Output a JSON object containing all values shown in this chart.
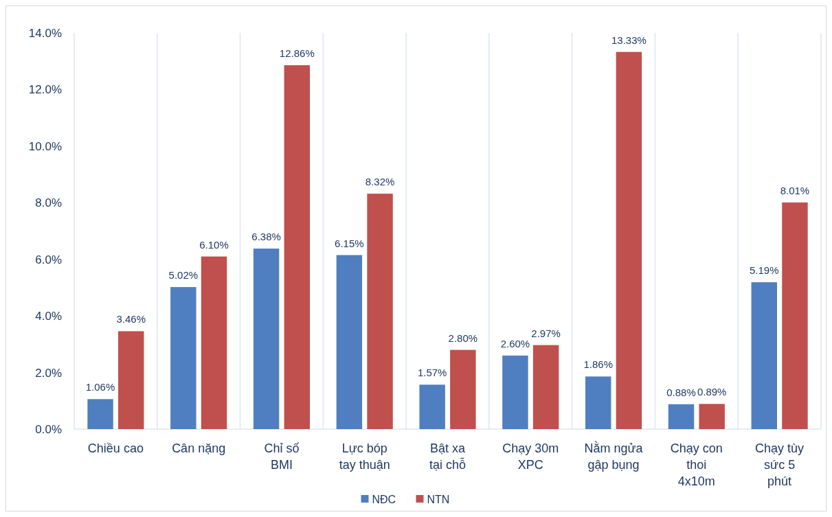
{
  "chart_data": {
    "type": "bar",
    "categories": [
      "Chiều cao",
      "Cân nặng",
      "Chỉ số BMI",
      "Lực bóp tay thuận",
      "Bật xa tại chỗ",
      "Chạy 30m XPC",
      "Nằm ngửa gập bụng",
      "Chạy con thoi 4x10m",
      "Chạy tùy sức 5 phút"
    ],
    "series": [
      {
        "name": "NĐC",
        "color": "#4f7fc0",
        "values": [
          1.06,
          5.02,
          6.38,
          6.15,
          1.57,
          2.6,
          1.86,
          0.88,
          5.19
        ],
        "value_labels": [
          "1.06%",
          "5.02%",
          "6.38%",
          "6.15%",
          "1.57%",
          "2.60%",
          "1.86%",
          "0.88%",
          "5.19%"
        ]
      },
      {
        "name": "NTN",
        "color": "#c0504d",
        "values": [
          3.46,
          6.1,
          12.86,
          8.32,
          2.8,
          2.97,
          13.33,
          0.89,
          8.01
        ],
        "value_labels": [
          "3.46%",
          "6.10%",
          "12.86%",
          "8.32%",
          "2.80%",
          "2.97%",
          "13.33%",
          "0.89%",
          "8.01%"
        ]
      }
    ],
    "ylim": [
      0,
      14
    ],
    "yticks": [
      {
        "value": 0,
        "label": "0.0%"
      },
      {
        "value": 2,
        "label": "2.0%"
      },
      {
        "value": 4,
        "label": "4.0%"
      },
      {
        "value": 6,
        "label": "6.0%"
      },
      {
        "value": 8,
        "label": "8.0%"
      },
      {
        "value": 10,
        "label": "10.0%"
      },
      {
        "value": 12,
        "label": "12.0%"
      },
      {
        "value": 14,
        "label": "14.0%"
      }
    ],
    "grid": "x",
    "legend": "bottom"
  }
}
